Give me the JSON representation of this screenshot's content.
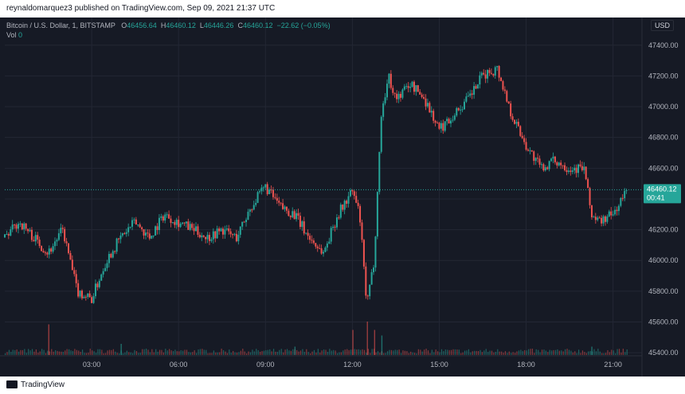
{
  "header": {
    "published": "reynaldomarquez3 published on TradingView.com, Sep 09, 2021 21:37 UTC"
  },
  "legend": {
    "symbol": "Bitcoin / U.S. Dollar, 1, BITSTAMP",
    "o_label": "O",
    "o_value": "46456.64",
    "h_label": "H",
    "h_value": "46460.12",
    "l_label": "L",
    "l_value": "46446.26",
    "c_label": "C",
    "c_value": "46460.12",
    "change": "−22.62 (−0.05%)",
    "vol_label": "Vol",
    "vol_value": "0"
  },
  "currency_button": "USD",
  "price_tag": {
    "price": "46460.12",
    "countdown": "00:41"
  },
  "footer": {
    "brand": "TradingView"
  },
  "colors": {
    "up": "#26a69a",
    "down": "#ef5350",
    "background": "#161a25",
    "grid": "#232734",
    "text": "#b2b5be"
  },
  "chart_data": {
    "type": "line",
    "series": [
      {
        "values": [
          {
            "x": "00:00",
            "y": 46150
          },
          {
            "x": "00:30",
            "y": 46250
          },
          {
            "x": "01:00",
            "y": 46150
          },
          {
            "x": "01:30",
            "y": 46050
          },
          {
            "x": "02:00",
            "y": 46200
          },
          {
            "x": "02:30",
            "y": 45800
          },
          {
            "x": "03:00",
            "y": 45750
          },
          {
            "x": "03:30",
            "y": 46000
          },
          {
            "x": "04:00",
            "y": 46150
          },
          {
            "x": "04:30",
            "y": 46250
          },
          {
            "x": "05:00",
            "y": 46150
          },
          {
            "x": "05:30",
            "y": 46300
          },
          {
            "x": "06:00",
            "y": 46250
          },
          {
            "x": "06:30",
            "y": 46200
          },
          {
            "x": "07:00",
            "y": 46150
          },
          {
            "x": "07:30",
            "y": 46200
          },
          {
            "x": "08:00",
            "y": 46150
          },
          {
            "x": "08:30",
            "y": 46350
          },
          {
            "x": "09:00",
            "y": 46480
          },
          {
            "x": "09:30",
            "y": 46350
          },
          {
            "x": "10:00",
            "y": 46300
          },
          {
            "x": "10:30",
            "y": 46150
          },
          {
            "x": "11:00",
            "y": 46050
          },
          {
            "x": "11:30",
            "y": 46300
          },
          {
            "x": "12:00",
            "y": 46450
          },
          {
            "x": "12:15",
            "y": 46300
          },
          {
            "x": "12:30",
            "y": 45700
          },
          {
            "x": "12:45",
            "y": 46000
          },
          {
            "x": "13:00",
            "y": 46950
          },
          {
            "x": "13:15",
            "y": 47200
          },
          {
            "x": "13:30",
            "y": 47050
          },
          {
            "x": "14:00",
            "y": 47150
          },
          {
            "x": "14:30",
            "y": 47050
          },
          {
            "x": "15:00",
            "y": 46850
          },
          {
            "x": "15:30",
            "y": 46950
          },
          {
            "x": "16:00",
            "y": 47050
          },
          {
            "x": "16:30",
            "y": 47200
          },
          {
            "x": "17:00",
            "y": 47250
          },
          {
            "x": "17:30",
            "y": 46950
          },
          {
            "x": "18:00",
            "y": 46750
          },
          {
            "x": "18:30",
            "y": 46600
          },
          {
            "x": "19:00",
            "y": 46650
          },
          {
            "x": "19:30",
            "y": 46600
          },
          {
            "x": "20:00",
            "y": 46600
          },
          {
            "x": "20:15",
            "y": 46300
          },
          {
            "x": "20:30",
            "y": 46250
          },
          {
            "x": "21:00",
            "y": 46300
          },
          {
            "x": "21:30",
            "y": 46460
          }
        ]
      }
    ],
    "x_ticks": [
      "03:00",
      "06:00",
      "09:00",
      "12:00",
      "15:00",
      "18:00",
      "21:00"
    ],
    "y_ticks": [
      45400,
      45600,
      45800,
      46000,
      46200,
      46400,
      46600,
      46800,
      47000,
      47200,
      47400
    ],
    "ylim": [
      45380,
      47580
    ],
    "xlim": [
      "00:00",
      "22:00"
    ],
    "last_price": 46460.12,
    "volume_spikes": [
      {
        "x": "01:30",
        "v": 0.55
      },
      {
        "x": "12:00",
        "v": 0.45
      },
      {
        "x": "12:30",
        "v": 0.6
      },
      {
        "x": "12:45",
        "v": 0.45
      },
      {
        "x": "13:00",
        "v": 0.35
      },
      {
        "x": "04:00",
        "v": 0.2
      },
      {
        "x": "10:00",
        "v": 0.15
      },
      {
        "x": "20:15",
        "v": 0.15
      }
    ],
    "grid": true
  }
}
